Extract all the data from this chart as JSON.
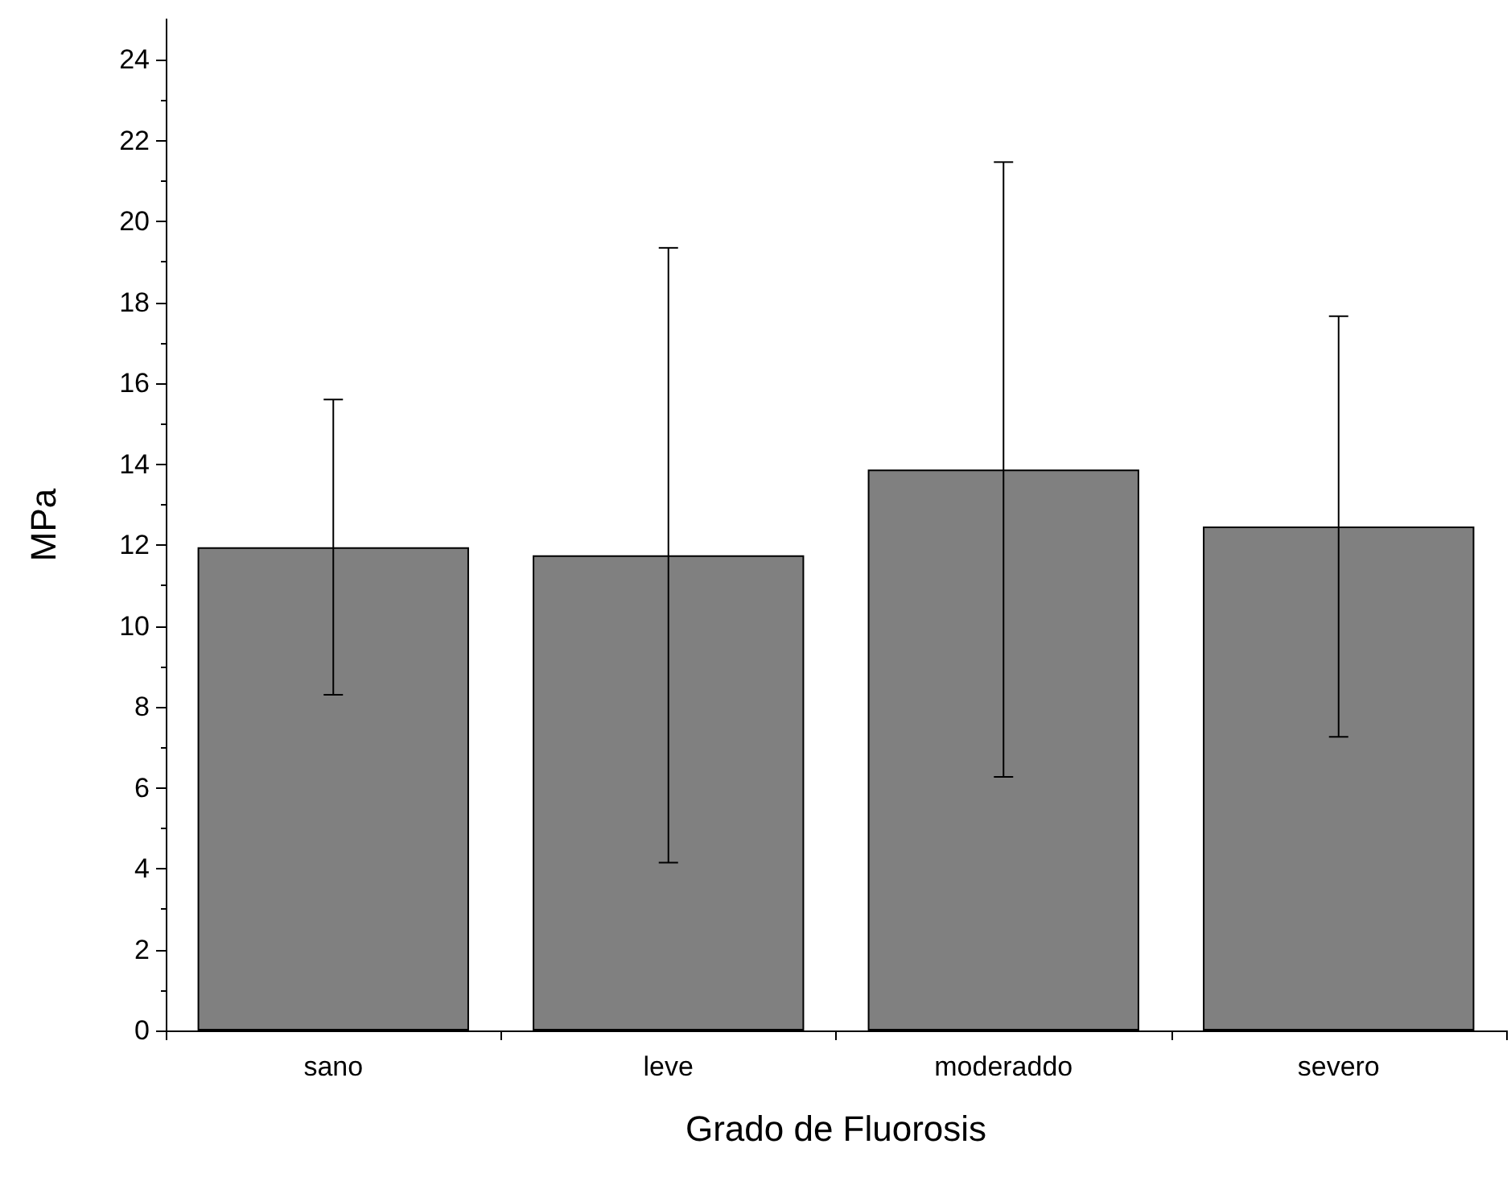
{
  "chart_data": {
    "type": "bar",
    "xlabel": "Grado de Fluorosis",
    "ylabel": "MPa",
    "categories": [
      "sano",
      "leve",
      "moderaddo",
      "severo"
    ],
    "values": [
      11.95,
      11.75,
      13.87,
      12.46
    ],
    "errors": [
      3.65,
      7.6,
      7.6,
      5.2
    ],
    "color": "#808080",
    "ylim": [
      0,
      25
    ],
    "yticks": [
      0,
      2,
      4,
      6,
      8,
      10,
      12,
      14,
      16,
      18,
      20,
      22,
      24
    ],
    "grid": false
  }
}
